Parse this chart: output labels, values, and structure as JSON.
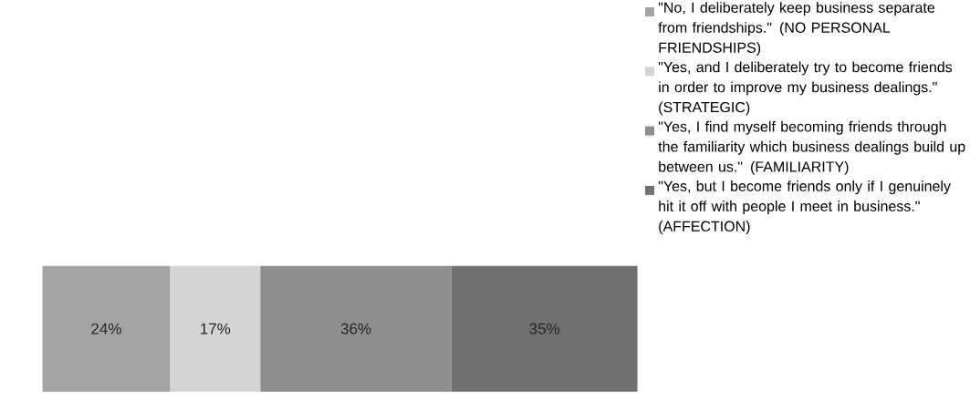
{
  "chart_data": {
    "type": "bar",
    "orientation": "horizontal",
    "stacked": true,
    "legend": "right",
    "categories": [
      null
    ],
    "series": [
      {
        "name": "\"No, I deliberately keep business separate from friendships.\" (NO PERSONAL FRIENDSHIPS)",
        "color": "#a3a3a3",
        "values": [
          24
        ],
        "value_labels": [
          "24%"
        ]
      },
      {
        "name": "\"Yes, and I deliberately try to become friends in order to improve my business dealings.\" (STRATEGIC)",
        "color": "#d4d4d4",
        "values": [
          17
        ],
        "value_labels": [
          "17%"
        ]
      },
      {
        "name": "\"Yes, I find myself becoming friends through the familiarity which business dealings build up between us.\" (FAMILIARITY)",
        "color": "#8e8e8e",
        "values": [
          36
        ],
        "value_labels": [
          "36%"
        ]
      },
      {
        "name": "\"Yes, but I become friends only if I genuinely hit it off with people I meet in business.\" (AFFECTION)",
        "color": "#707070",
        "values": [
          35
        ],
        "value_labels": [
          "35%"
        ]
      }
    ]
  }
}
